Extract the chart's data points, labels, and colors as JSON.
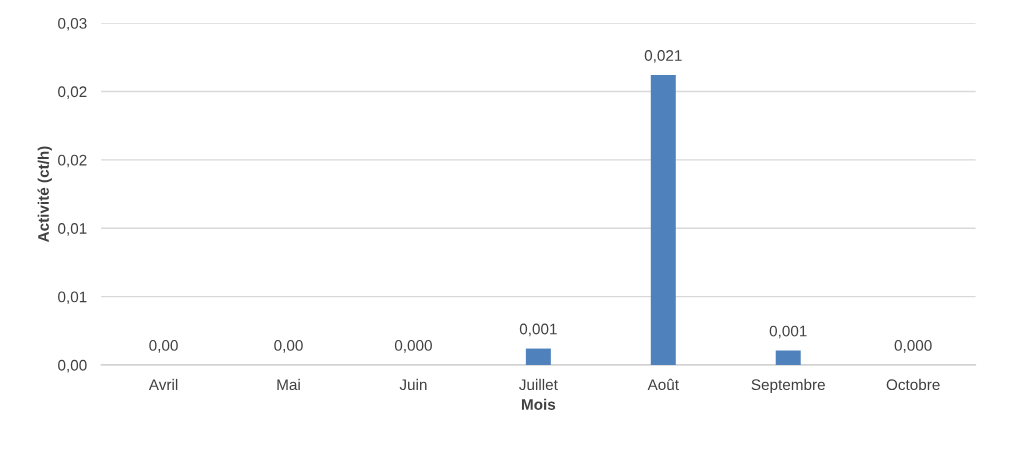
{
  "chart_data": {
    "type": "bar",
    "xlabel": "Mois",
    "ylabel": "Activité (ct/h)",
    "categories": [
      "Avril",
      "Mai",
      "Juin",
      "Juillet",
      "Août",
      "Septembre",
      "Octobre"
    ],
    "values": [
      0,
      0,
      0,
      0.0012,
      0.0212,
      0.00105,
      0
    ],
    "value_labels": [
      "0,00",
      "0,00",
      "0,000",
      "0,001",
      "0,021",
      "0,001",
      "0,000"
    ],
    "color": "#4f81bd",
    "ylim": [
      0,
      0.025
    ],
    "yticks": [
      {
        "value": 0,
        "label": "0,00"
      },
      {
        "value": 0.005,
        "label": "0,01"
      },
      {
        "value": 0.01,
        "label": "0,01"
      },
      {
        "value": 0.015,
        "label": "0,02"
      },
      {
        "value": 0.02,
        "label": "0,02"
      },
      {
        "value": 0.025,
        "label": "0,03"
      }
    ],
    "grid": "y"
  }
}
